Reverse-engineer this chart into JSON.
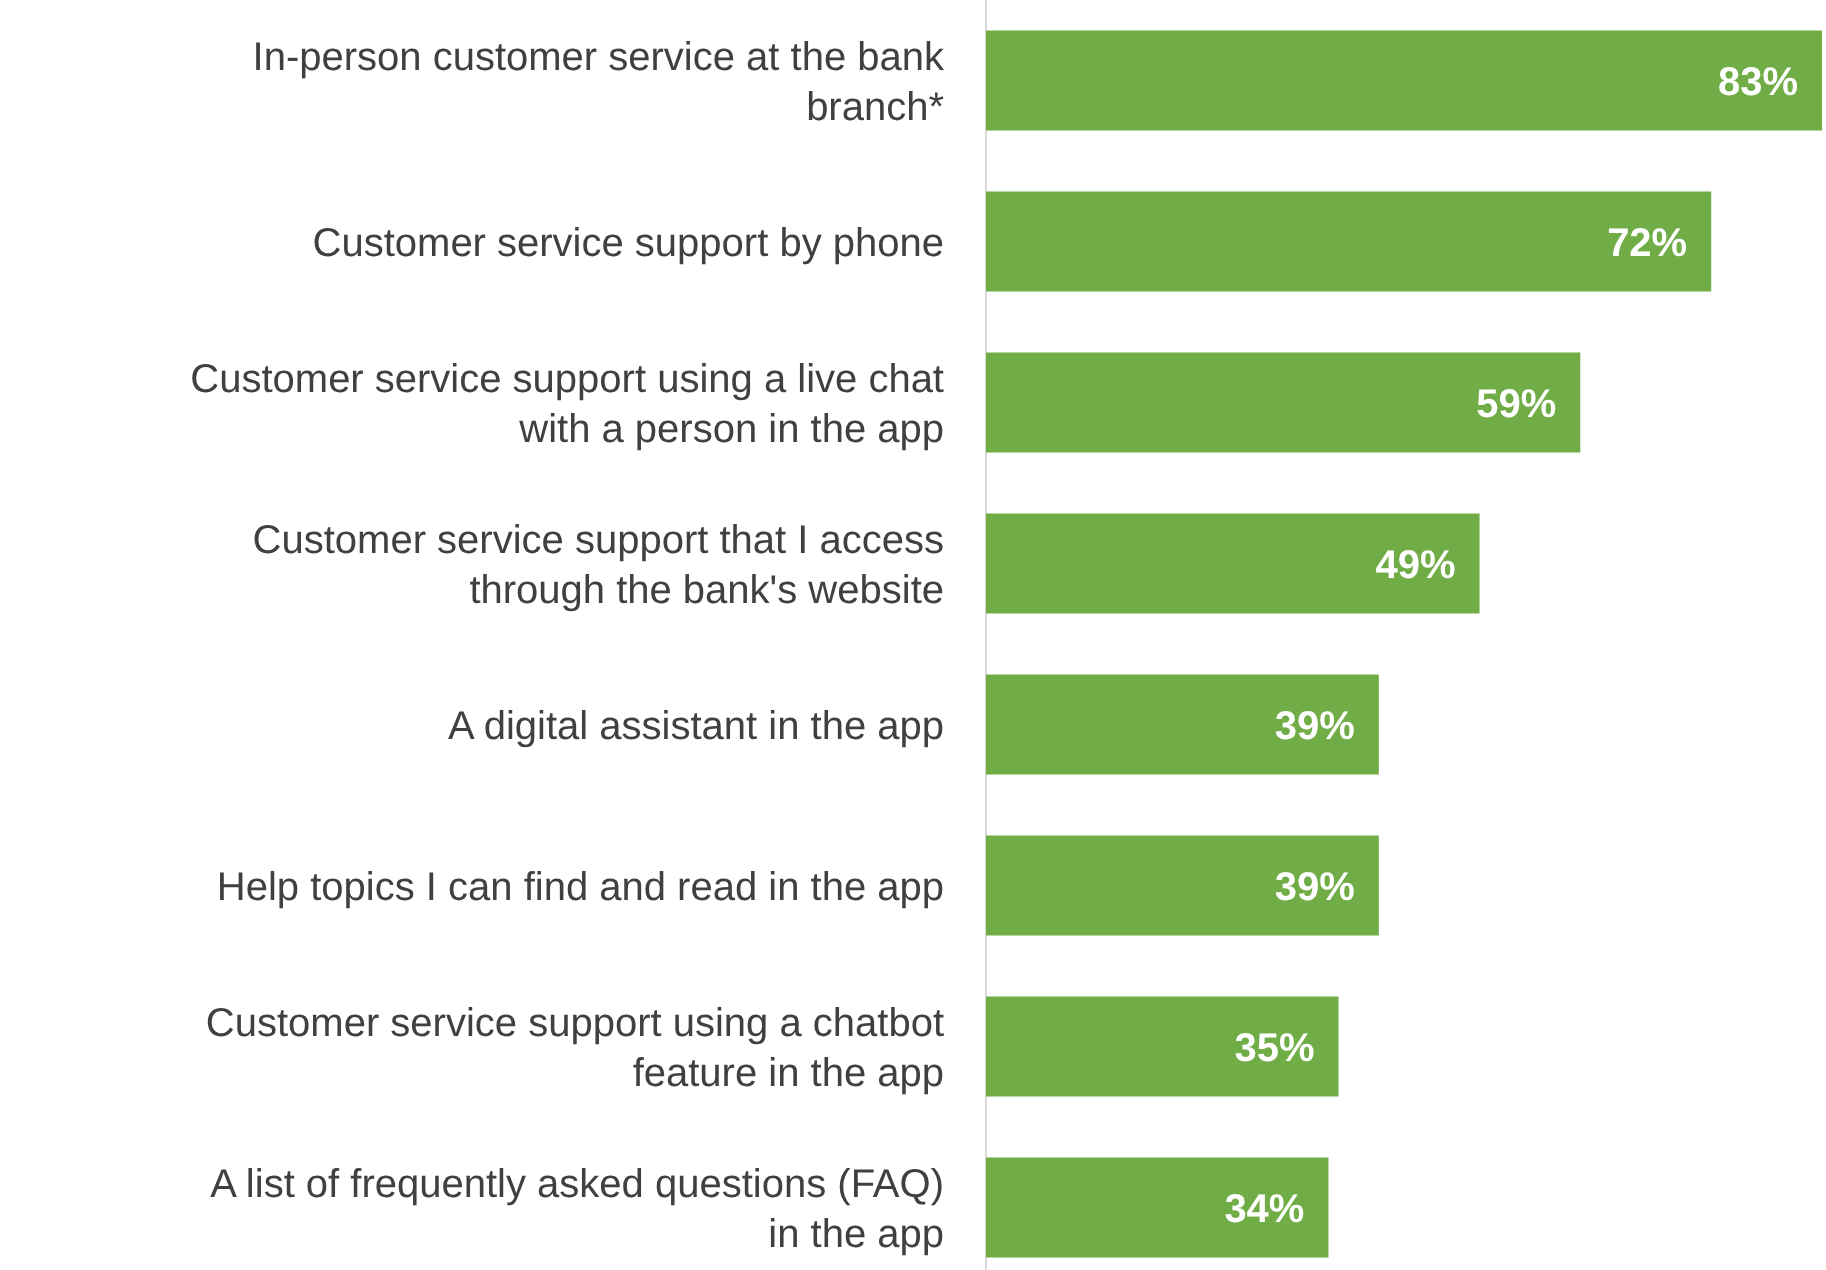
{
  "chart_data": {
    "type": "bar",
    "orientation": "horizontal",
    "categories": [
      "In-person customer service at the bank branch*",
      "Customer service support by phone",
      "Customer service support using a live chat with a person in the app",
      "Customer service support that I access through the bank's website",
      "A digital assistant in the app",
      "Help topics I can find and read in the app",
      "Customer service support using a chatbot feature in the app",
      "A list of frequently asked questions (FAQ) in the app"
    ],
    "series": [
      {
        "color": "#70ad47",
        "values": [
          83,
          72,
          59,
          49,
          39,
          39,
          35,
          34
        ],
        "value_labels": [
          "83%",
          "72%",
          "59%",
          "49%",
          "39%",
          "39%",
          "35%",
          "34%"
        ]
      }
    ]
  }
}
